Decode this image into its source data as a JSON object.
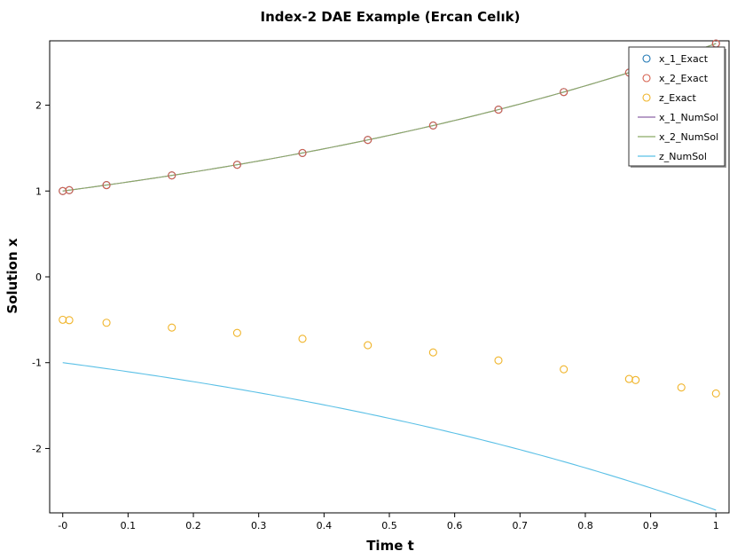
{
  "chart_data": {
    "type": "line",
    "title": "Index-2 DAE Example (Ercan Celık)",
    "xlabel": "Time t",
    "ylabel": "Solution x",
    "xlim": [
      -0.02,
      1.02
    ],
    "ylim": [
      -2.75,
      2.75
    ],
    "x_ticks": [
      0,
      0.1,
      0.2,
      0.3,
      0.4,
      0.5,
      0.6,
      0.7,
      0.8,
      0.9,
      1
    ],
    "x_tick_labels": [
      "-0",
      "0.1",
      "0.2",
      "0.3",
      "0.4",
      "0.5",
      "0.6",
      "0.7",
      "0.8",
      "0.9",
      "1"
    ],
    "y_ticks": [
      -2,
      -1,
      0,
      1,
      2
    ],
    "y_tick_labels": [
      "-2",
      "-1",
      "0",
      "1",
      "2"
    ],
    "grid": false,
    "legend_position": "top-right",
    "markers": [
      {
        "name": "x_1_Exact",
        "color": "#1f77b4",
        "x": [
          0,
          0.01,
          0.067,
          0.167,
          0.267,
          0.367,
          0.467,
          0.567,
          0.667,
          0.767,
          0.867,
          0.877,
          0.947,
          1.0
        ],
        "y": [
          1.0,
          1.01,
          1.069,
          1.182,
          1.306,
          1.443,
          1.595,
          1.763,
          1.948,
          2.153,
          2.38,
          2.404,
          2.578,
          2.718
        ]
      },
      {
        "name": "x_2_Exact",
        "color": "#d6604d",
        "x": [
          0,
          0.01,
          0.067,
          0.167,
          0.267,
          0.367,
          0.467,
          0.567,
          0.667,
          0.767,
          0.867,
          0.877,
          0.947,
          1.0
        ],
        "y": [
          1.0,
          1.01,
          1.069,
          1.182,
          1.306,
          1.443,
          1.595,
          1.763,
          1.948,
          2.153,
          2.38,
          2.404,
          2.578,
          2.718
        ]
      },
      {
        "name": "z_Exact",
        "color": "#f0b429",
        "x": [
          0,
          0.01,
          0.067,
          0.167,
          0.267,
          0.367,
          0.467,
          0.567,
          0.667,
          0.767,
          0.867,
          0.877,
          0.947,
          1.0
        ],
        "y": [
          -0.5,
          -0.505,
          -0.535,
          -0.591,
          -0.653,
          -0.722,
          -0.797,
          -0.881,
          -0.974,
          -1.077,
          -1.19,
          -1.202,
          -1.289,
          -1.359
        ]
      }
    ],
    "series": [
      {
        "name": "x_1_NumSol",
        "color": "#8e63a8",
        "expr": "exp(t)"
      },
      {
        "name": "x_2_NumSol",
        "color": "#8aab66",
        "expr": "exp(t)"
      },
      {
        "name": "z_NumSol",
        "color": "#5bc0e6",
        "expr": "-exp(t)"
      }
    ]
  }
}
